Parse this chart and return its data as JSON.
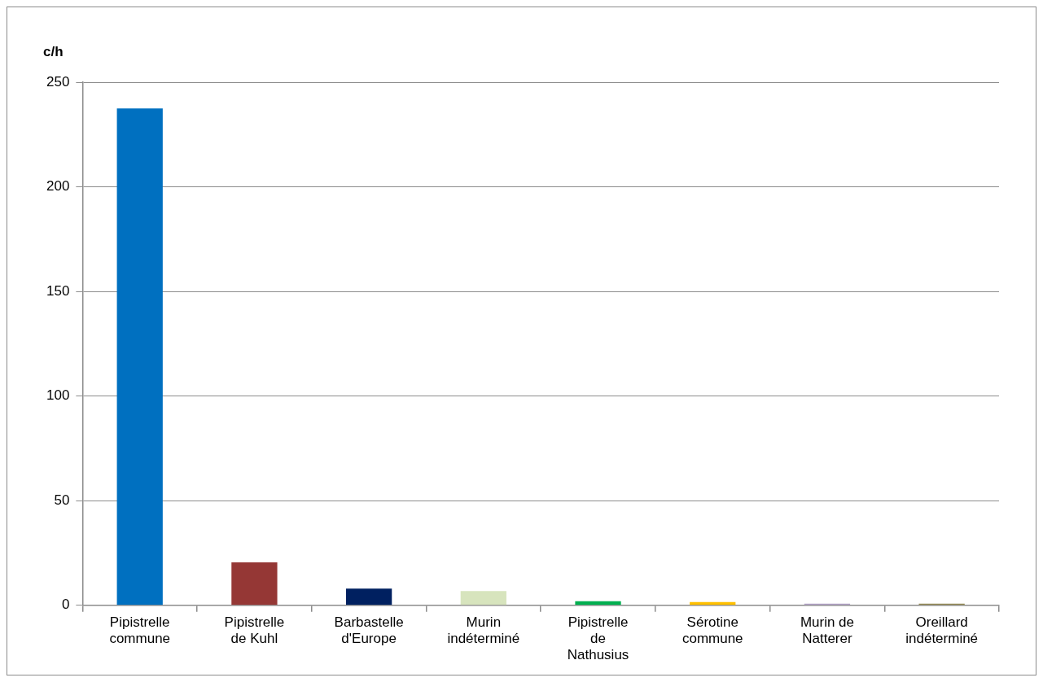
{
  "chart_data": {
    "type": "bar",
    "ylabel": "c/h",
    "categories": [
      "Pipistrelle commune",
      "Pipistrelle de Kuhl",
      "Barbastelle d'Europe",
      "Murin indéterminé",
      "Pipistrelle de Nathusius",
      "Sérotine commune",
      "Murin de Natterer",
      "Oreillard indéterminé"
    ],
    "values": [
      237.5,
      20.5,
      8.0,
      6.8,
      2.0,
      1.6,
      0.8,
      0.8
    ],
    "colors": [
      "#0070c0",
      "#953735",
      "#002060",
      "#d7e4bd",
      "#00b050",
      "#ffc000",
      "#b3a2c7",
      "#948a54"
    ],
    "ylim": [
      0,
      250
    ],
    "yticks": [
      0,
      50,
      100,
      150,
      200,
      250
    ],
    "grid": "y",
    "legend": false
  }
}
